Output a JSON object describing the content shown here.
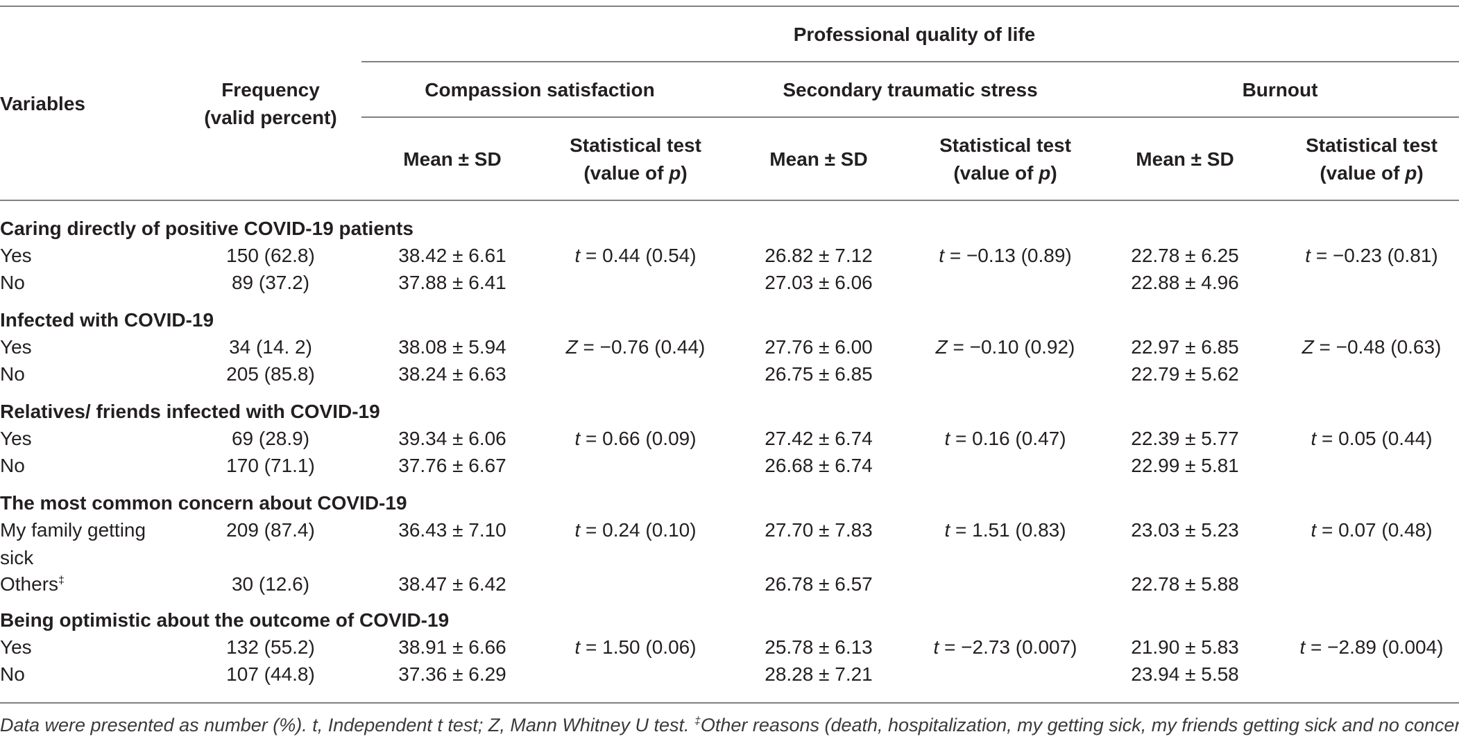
{
  "header": {
    "variables": "Variables",
    "frequency_line1": "Frequency",
    "frequency_line2": "(valid percent)",
    "group_title": "Professional quality of life",
    "subgroups": [
      "Compassion satisfaction",
      "Secondary traumatic stress",
      "Burnout"
    ],
    "mean_sd": "Mean ± SD",
    "stat_test_line1": "Statistical test",
    "stat_test_line2_prefix": "(value of ",
    "stat_test_p": "p",
    "stat_test_line2_suffix": ")"
  },
  "sections": [
    {
      "title": "Caring directly of positive COVID-19 patients",
      "rows": [
        {
          "label": "Yes",
          "freq": "150 (62.8)",
          "cs_mean": "38.42 ± 6.61",
          "sts_mean": "26.82 ± 7.12",
          "bo_mean": "22.78 ± 6.25"
        },
        {
          "label": "No",
          "freq": "89 (37.2)",
          "cs_mean": "37.88 ± 6.41",
          "sts_mean": "27.03 ± 6.06",
          "bo_mean": "22.88 ± 4.96"
        }
      ],
      "tests": {
        "cs": {
          "sym": "t",
          "val": " = 0.44 (0.54)"
        },
        "sts": {
          "sym": "t",
          "val": " = −0.13 (0.89)"
        },
        "bo": {
          "sym": "t",
          "val": " = −0.23 (0.81)"
        }
      }
    },
    {
      "title": "Infected with COVID-19",
      "rows": [
        {
          "label": "Yes",
          "freq": "34 (14. 2)",
          "cs_mean": "38.08 ± 5.94",
          "sts_mean": "27.76 ± 6.00",
          "bo_mean": "22.97 ± 6.85"
        },
        {
          "label": "No",
          "freq": "205 (85.8)",
          "cs_mean": "38.24 ± 6.63",
          "sts_mean": "26.75 ± 6.85",
          "bo_mean": "22.79 ± 5.62"
        }
      ],
      "tests": {
        "cs": {
          "sym": "Z",
          "val": " = −0.76 (0.44)"
        },
        "sts": {
          "sym": "Z",
          "val": " = −0.10 (0.92)"
        },
        "bo": {
          "sym": "Z",
          "val": " = −0.48 (0.63)"
        }
      }
    },
    {
      "title": "Relatives/ friends infected with COVID-19",
      "rows": [
        {
          "label": "Yes",
          "freq": "69 (28.9)",
          "cs_mean": "39.34 ± 6.06",
          "sts_mean": "27.42 ± 6.74",
          "bo_mean": "22.39 ± 5.77"
        },
        {
          "label": "No",
          "freq": "170 (71.1)",
          "cs_mean": "37.76 ± 6.67",
          "sts_mean": "26.68 ± 6.74",
          "bo_mean": "22.99 ± 5.81"
        }
      ],
      "tests": {
        "cs": {
          "sym": "t",
          "val": " = 0.66 (0.09)"
        },
        "sts": {
          "sym": "t",
          "val": " = 0.16 (0.47)"
        },
        "bo": {
          "sym": "t",
          "val": " = 0.05 (0.44)"
        }
      }
    },
    {
      "title": "The most common concern about COVID-19",
      "rows": [
        {
          "label_line1": "My family getting",
          "label_line2": "sick",
          "freq": "209 (87.4)",
          "cs_mean": "36.43 ± 7.10",
          "sts_mean": "27.70 ± 7.83",
          "bo_mean": "23.03 ± 5.23"
        },
        {
          "label": "Others",
          "label_sup": "‡",
          "freq": "30 (12.6)",
          "cs_mean": "38.47 ± 6.42",
          "sts_mean": "26.78 ± 6.57",
          "bo_mean": "22.78 ± 5.88"
        }
      ],
      "tests": {
        "cs": {
          "sym": "t",
          "val": " = 0.24 (0.10)"
        },
        "sts": {
          "sym": "t",
          "val": " = 1.51 (0.83)"
        },
        "bo": {
          "sym": "t",
          "val": " = 0.07 (0.48)"
        }
      }
    },
    {
      "title": "Being optimistic about the outcome of COVID-19",
      "rows": [
        {
          "label": "Yes",
          "freq": "132 (55.2)",
          "cs_mean": "38.91 ± 6.66",
          "sts_mean": "25.78 ± 6.13",
          "bo_mean": "21.90 ± 5.83"
        },
        {
          "label": "No",
          "freq": "107 (44.8)",
          "cs_mean": "37.36 ± 6.29",
          "sts_mean": "28.28 ± 7.21",
          "bo_mean": "23.94 ± 5.58"
        }
      ],
      "tests": {
        "cs": {
          "sym": "t",
          "val": " = 1.50 (0.06)"
        },
        "sts": {
          "sym": "t",
          "val": " = −2.73 (0.007)"
        },
        "bo": {
          "sym": "t",
          "val": " = −2.89 (0.004)"
        }
      }
    }
  ],
  "footnote": {
    "text": "Data were presented as number (%). t, Independent t test; Z, Mann Whitney U test. ",
    "sup": "‡",
    "text2": "Other reasons (death, hospitalization, my getting sick, my friends getting sick and no concern)."
  }
}
